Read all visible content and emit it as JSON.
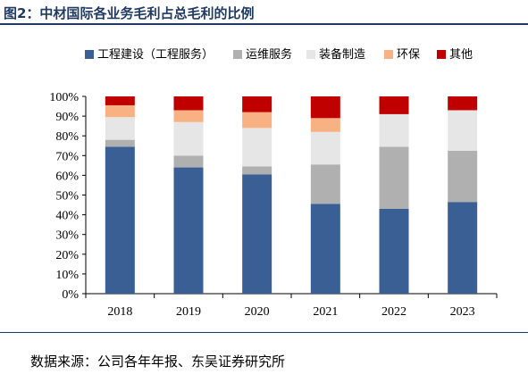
{
  "figure": {
    "title": "图2：中材国际各业务毛利占总毛利的比例",
    "source": "数据来源：公司各年年报、东吴证券研究所"
  },
  "chart_data": {
    "type": "bar",
    "stacked": true,
    "title": "",
    "xlabel": "",
    "ylabel": "",
    "ylim": [
      0,
      100
    ],
    "yticks": [
      "0%",
      "10%",
      "20%",
      "30%",
      "40%",
      "50%",
      "60%",
      "70%",
      "80%",
      "90%",
      "100%"
    ],
    "categories": [
      "2018",
      "2019",
      "2020",
      "2021",
      "2022",
      "2023"
    ],
    "legend_position": "top",
    "grid": false,
    "series": [
      {
        "name": "工程建设（工程服务）",
        "color": "#3a5f94",
        "values": [
          74.5,
          64,
          60.5,
          45.5,
          43,
          46.5
        ]
      },
      {
        "name": "运维服务",
        "color": "#b0b0b0",
        "values": [
          3.5,
          6,
          4,
          20,
          31.5,
          26
        ]
      },
      {
        "name": "装备制造",
        "color": "#e6e6e6",
        "values": [
          11.5,
          17,
          19.5,
          16.5,
          16.5,
          20.5
        ]
      },
      {
        "name": "环保",
        "color": "#f7b183",
        "values": [
          6,
          6,
          8,
          7,
          0,
          0
        ]
      },
      {
        "name": "其他",
        "color": "#c00000",
        "values": [
          4.5,
          7,
          8,
          11,
          9,
          7
        ]
      }
    ]
  }
}
